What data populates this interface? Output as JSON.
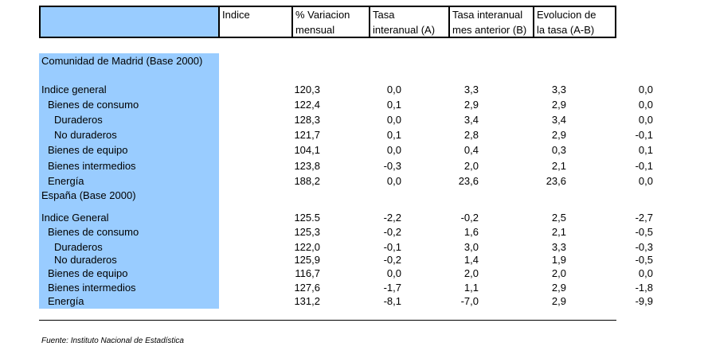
{
  "headers": [
    {
      "line1": "Indice",
      "line2": ""
    },
    {
      "line1": "% Variacion",
      "line2": "mensual"
    },
    {
      "line1": "Tasa",
      "line2": "interanual (A)"
    },
    {
      "line1": "Tasa interanual",
      "line2": "mes anterior (B)"
    },
    {
      "line1": "Evolucion de",
      "line2": "la tasa (A-B)"
    }
  ],
  "sections": [
    {
      "title": "Comunidad de Madrid (Base 2000)",
      "rows": [
        {
          "label": "Indice general",
          "indent": 0,
          "values": [
            "120,3",
            "0,0",
            "3,3",
            "3,3",
            "0,0"
          ]
        },
        {
          "label": "Bienes de consumo",
          "indent": 1,
          "values": [
            "122,4",
            "0,1",
            "2,9",
            "2,9",
            "0,0"
          ]
        },
        {
          "label": "Duraderos",
          "indent": 2,
          "values": [
            "128,3",
            "0,0",
            "3,4",
            "3,4",
            "0,0"
          ]
        },
        {
          "label": "No duraderos",
          "indent": 2,
          "values": [
            "121,7",
            "0,1",
            "2,8",
            "2,9",
            "-0,1"
          ]
        },
        {
          "label": "Bienes de equipo",
          "indent": 1,
          "values": [
            "104,1",
            "0,0",
            "0,4",
            "0,3",
            "0,1"
          ]
        },
        {
          "label": "Bienes intermedios",
          "indent": 1,
          "values": [
            "123,8",
            "-0,3",
            "2,0",
            "2,1",
            "-0,1"
          ]
        },
        {
          "label": "Energía",
          "indent": 1,
          "values": [
            "188,2",
            "0,0",
            "23,6",
            "23,6",
            "0,0"
          ]
        }
      ]
    },
    {
      "title": "España (Base 2000)",
      "rows": [
        {
          "label": "Indice General",
          "indent": 0,
          "values": [
            "125.5",
            "-2,2",
            "-0,2",
            "2,5",
            "-2,7"
          ]
        },
        {
          "label": "Bienes de consumo",
          "indent": 1,
          "values": [
            "125,3",
            "-0,2",
            "1,6",
            "2,1",
            "-0,5"
          ]
        },
        {
          "label": "Duraderos",
          "indent": 2,
          "values": [
            "122,0",
            "-0,1",
            "3,0",
            "3,3",
            "-0,3"
          ]
        },
        {
          "label": "No duraderos",
          "indent": 2,
          "values": [
            "125,9",
            "-0,2",
            "1,4",
            "1,9",
            "-0,5"
          ]
        },
        {
          "label": "Bienes de equipo",
          "indent": 1,
          "values": [
            "116,7",
            "0,0",
            "2,0",
            "2,0",
            "0,0"
          ]
        },
        {
          "label": "Bienes intermedios",
          "indent": 1,
          "values": [
            "127,6",
            "-1,7",
            "1,1",
            "2,9",
            "-1,8"
          ]
        },
        {
          "label": "Energía",
          "indent": 1,
          "values": [
            "131,2",
            "-8,1",
            "-7,0",
            "2,9",
            "-9,9"
          ]
        }
      ]
    }
  ],
  "source": "Fuente: Instituto Nacional de Estadística"
}
